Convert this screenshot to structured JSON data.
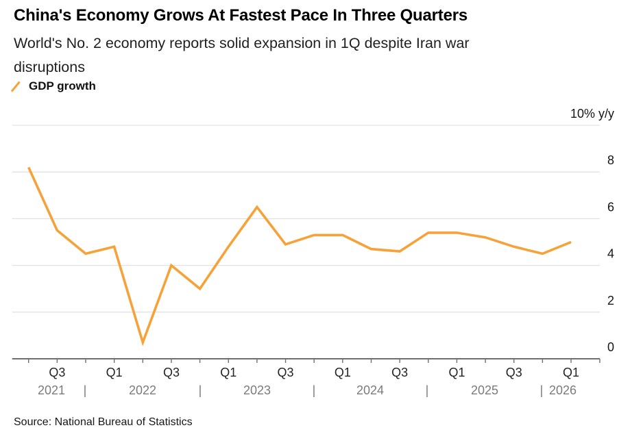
{
  "header": {
    "title": "China's Economy Grows At Fastest Pace In Three Quarters",
    "subtitle_lines": [
      "World's No. 2 economy reports solid expansion in 1Q despite Iran war",
      "disruptions"
    ]
  },
  "footer": {
    "source": "Source: National Bureau of Statistics"
  },
  "chart_data": {
    "type": "line",
    "title": "China's Economy Grows At Fastest Pace In Three Quarters",
    "subtitle": "World's No. 2 economy reports solid expansion in 1Q despite Iran war disruptions",
    "unit_top_label": "10% y/y",
    "ylim": [
      0,
      10
    ],
    "y_ticks": [
      0,
      2,
      4,
      6,
      8
    ],
    "grid": true,
    "legend_position": "top-left",
    "categories": [
      "Q2 2021",
      "Q3 2021",
      "Q4 2021",
      "Q1 2022",
      "Q2 2022",
      "Q3 2022",
      "Q4 2022",
      "Q1 2023",
      "Q2 2023",
      "Q3 2023",
      "Q4 2023",
      "Q1 2024",
      "Q2 2024",
      "Q3 2024",
      "Q4 2024",
      "Q1 2025",
      "Q2 2025",
      "Q3 2025",
      "Q4 2025",
      "Q1 2026"
    ],
    "series": [
      {
        "name": "GDP growth",
        "color": "#F7A139",
        "values": [
          8.2,
          5.5,
          4.5,
          4.8,
          0.7,
          4.0,
          3.0,
          4.8,
          6.5,
          4.9,
          5.3,
          5.3,
          4.7,
          4.6,
          5.4,
          5.4,
          5.2,
          4.8,
          4.5,
          5.0
        ]
      }
    ],
    "x_tick_labels": [
      "",
      "Q3",
      "",
      "Q1",
      "",
      "Q3",
      "",
      "Q1",
      "",
      "Q3",
      "",
      "Q1",
      "",
      "Q3",
      "",
      "Q1",
      "",
      "Q3",
      "",
      "Q1"
    ],
    "year_labels": [
      "2021",
      "2022",
      "2023",
      "2024",
      "2025",
      "2026"
    ],
    "year_separator": "|",
    "colors": {
      "line": "#F7A139",
      "grid": "#E2E2E2",
      "axis": "#6F6F6F",
      "axis_text": "#161616",
      "year_text": "#7B7B7B"
    }
  }
}
